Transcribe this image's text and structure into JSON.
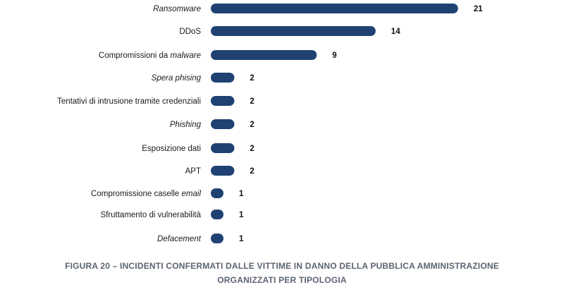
{
  "chart_data": {
    "type": "bar",
    "orientation": "horizontal",
    "categories": [
      "Ransomware",
      "DDoS",
      "Compromissioni da malware",
      "Spera phising",
      "Tentativi di intrusione tramite credenziali",
      "Phishing",
      "Esposizione dati",
      "APT",
      "Compromissione caselle email",
      "Sfruttamento di vulnerabilità",
      "Defacement"
    ],
    "values": [
      21,
      14,
      9,
      2,
      2,
      2,
      2,
      2,
      1,
      1,
      1
    ],
    "bar_color": "#1f4273",
    "caption_line1": "FIGURA 20 – INCIDENTI CONFERMATI DALLE VITTIME IN DANNO DELLA PUBBLICA AMMINISTRAZIONE",
    "caption_line2": "ORGANIZZATI PER TIPOLOGIA"
  }
}
